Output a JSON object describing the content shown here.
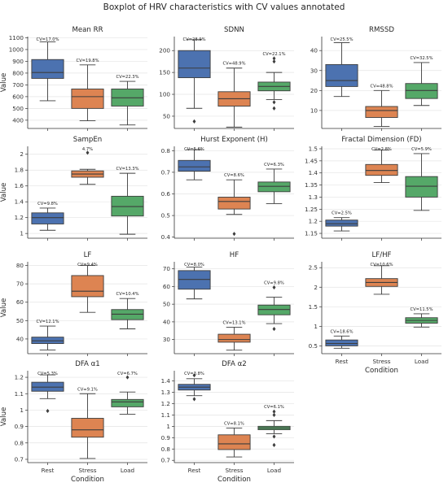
{
  "chart_data": {
    "type": "box",
    "title": "Boxplot of HRV characteristics with CV values annotated",
    "xlabel": "Condition",
    "ylabel": "Value",
    "categories": [
      "Rest",
      "Stress",
      "Load"
    ],
    "colors": {
      "Rest": "#4c72b0",
      "Stress": "#dd8452",
      "Load": "#55a868"
    },
    "panels": [
      {
        "title": "Mean RR",
        "ylim": [
          330,
          1110
        ],
        "yticks": [
          400,
          500,
          600,
          700,
          800,
          900,
          1000,
          1100
        ],
        "boxes": [
          {
            "category": "Rest",
            "whislo": 565,
            "q1": 755,
            "med": 805,
            "q3": 915,
            "whishi": 1065,
            "fliers": [],
            "cv": "CV=17.0%"
          },
          {
            "category": "Stress",
            "whislo": 395,
            "q1": 500,
            "med": 600,
            "q3": 665,
            "whishi": 870,
            "fliers": [],
            "cv": "CV=19.8%"
          },
          {
            "category": "Load",
            "whislo": 360,
            "q1": 520,
            "med": 590,
            "q3": 665,
            "whishi": 730,
            "fliers": [],
            "cv": "CV=22.3%"
          }
        ]
      },
      {
        "title": "SDNN",
        "ylim": [
          22,
          232
        ],
        "yticks": [
          50,
          100,
          150,
          200
        ],
        "boxes": [
          {
            "category": "Rest",
            "whislo": 68,
            "q1": 138,
            "med": 160,
            "q3": 200,
            "whishi": 225,
            "fliers": [
              38
            ],
            "cv": "CV=28.9%"
          },
          {
            "category": "Stress",
            "whislo": 25,
            "q1": 73,
            "med": 90,
            "q3": 106,
            "whishi": 160,
            "fliers": [],
            "cv": "CV=48.9%"
          },
          {
            "category": "Load",
            "whislo": 88,
            "q1": 108,
            "med": 118,
            "q3": 128,
            "whishi": 150,
            "fliers": [
              182,
              175,
              82,
              68
            ],
            "cv": "CV=22.1%"
          }
        ]
      },
      {
        "title": "RMSSD",
        "ylim": [
          1,
          47
        ],
        "yticks": [
          10,
          20,
          30,
          40
        ],
        "boxes": [
          {
            "category": "Rest",
            "whislo": 17,
            "q1": 22,
            "med": 25,
            "q3": 33,
            "whishi": 44,
            "fliers": [],
            "cv": "CV=25.5%"
          },
          {
            "category": "Stress",
            "whislo": 2,
            "q1": 6.5,
            "med": 10,
            "q3": 12,
            "whishi": 20,
            "fliers": [],
            "cv": "CV=48.8%"
          },
          {
            "category": "Load",
            "whislo": 12.5,
            "q1": 16,
            "med": 20,
            "q3": 23.5,
            "whishi": 34,
            "fliers": [],
            "cv": "CV=32.5%"
          }
        ]
      },
      {
        "title": "SampEn",
        "ylim": [
          0.94,
          2.1
        ],
        "yticks": [
          1.0,
          1.2,
          1.4,
          1.6,
          1.8,
          2.0
        ],
        "boxes": [
          {
            "category": "Rest",
            "whislo": 1.04,
            "q1": 1.12,
            "med": 1.2,
            "q3": 1.26,
            "whishi": 1.32,
            "fliers": [],
            "cv": "CV=9.8%"
          },
          {
            "category": "Stress",
            "whislo": 1.62,
            "q1": 1.71,
            "med": 1.75,
            "q3": 1.79,
            "whishi": 1.81,
            "fliers": [
              2.02
            ],
            "cv": "4.7%"
          },
          {
            "category": "Load",
            "whislo": 0.99,
            "q1": 1.22,
            "med": 1.34,
            "q3": 1.47,
            "whishi": 1.76,
            "fliers": [],
            "cv": "CV=13.3%"
          }
        ]
      },
      {
        "title": "Hurst Exponent (H)",
        "ylim": [
          0.395,
          0.82
        ],
        "yticks": [
          0.4,
          0.5,
          0.6,
          0.7,
          0.8
        ],
        "boxes": [
          {
            "category": "Rest",
            "whislo": 0.665,
            "q1": 0.705,
            "med": 0.725,
            "q3": 0.755,
            "whishi": 0.805,
            "fliers": [],
            "cv": "CV=5.6%"
          },
          {
            "category": "Stress",
            "whislo": 0.505,
            "q1": 0.53,
            "med": 0.565,
            "q3": 0.585,
            "whishi": 0.665,
            "fliers": [
              0.415
            ],
            "cv": "CV=8.6%"
          },
          {
            "category": "Load",
            "whislo": 0.555,
            "q1": 0.61,
            "med": 0.635,
            "q3": 0.655,
            "whishi": 0.715,
            "fliers": [],
            "cv": "CV=6.3%"
          }
        ]
      },
      {
        "title": "Fractal Dimension (FD)",
        "ylim": [
          1.13,
          1.51
        ],
        "yticks": [
          1.15,
          1.2,
          1.25,
          1.3,
          1.35,
          1.4,
          1.45,
          1.5
        ],
        "boxes": [
          {
            "category": "Rest",
            "whislo": 1.16,
            "q1": 1.18,
            "med": 1.19,
            "q3": 1.205,
            "whishi": 1.215,
            "fliers": [],
            "cv": "CV=2.5%"
          },
          {
            "category": "Stress",
            "whislo": 1.36,
            "q1": 1.39,
            "med": 1.41,
            "q3": 1.435,
            "whishi": 1.495,
            "fliers": [],
            "cv": "CV=2.8%"
          },
          {
            "category": "Load",
            "whislo": 1.245,
            "q1": 1.3,
            "med": 1.345,
            "q3": 1.385,
            "whishi": 1.48,
            "fliers": [],
            "cv": "CV=5.9%"
          }
        ]
      },
      {
        "title": "LF",
        "ylim": [
          32,
          82
        ],
        "yticks": [
          40,
          50,
          60,
          70,
          80
        ],
        "boxes": [
          {
            "category": "Rest",
            "whislo": 34,
            "q1": 37.5,
            "med": 39,
            "q3": 41,
            "whishi": 47,
            "fliers": [],
            "cv": "CV=12.1%"
          },
          {
            "category": "Stress",
            "whislo": 54.5,
            "q1": 63,
            "med": 66,
            "q3": 74.5,
            "whishi": 80,
            "fliers": [],
            "cv": "CV=9.4%"
          },
          {
            "category": "Load",
            "whislo": 45.5,
            "q1": 50.5,
            "med": 53.5,
            "q3": 56,
            "whishi": 62,
            "fliers": [],
            "cv": "CV=10.4%"
          }
        ]
      },
      {
        "title": "HF",
        "ylim": [
          22,
          74
        ],
        "yticks": [
          30,
          40,
          50,
          60,
          70
        ],
        "boxes": [
          {
            "category": "Rest",
            "whislo": 53,
            "q1": 58.5,
            "med": 64,
            "q3": 69,
            "whishi": 71,
            "fliers": [],
            "cv": "CV=8.0%"
          },
          {
            "category": "Stress",
            "whislo": 24,
            "q1": 28.5,
            "med": 30,
            "q3": 33,
            "whishi": 37,
            "fliers": [],
            "cv": "CV=13.1%"
          },
          {
            "category": "Load",
            "whislo": 39,
            "q1": 44,
            "med": 47,
            "q3": 49.5,
            "whishi": 54,
            "fliers": [
              59.5,
              36
            ],
            "cv": "CV=9.8%"
          }
        ]
      },
      {
        "title": "LF/HF",
        "ylim": [
          0.3,
          2.65
        ],
        "yticks": [
          0.5,
          1.0,
          1.5,
          2.0,
          2.5
        ],
        "boxes": [
          {
            "category": "Rest",
            "whislo": 0.44,
            "q1": 0.5,
            "med": 0.56,
            "q3": 0.65,
            "whishi": 0.75,
            "fliers": [],
            "cv": "CV=18.6%"
          },
          {
            "category": "Stress",
            "whislo": 1.82,
            "q1": 2.02,
            "med": 2.12,
            "q3": 2.22,
            "whishi": 2.55,
            "fliers": [],
            "cv": "CV=10.6%"
          },
          {
            "category": "Load",
            "whislo": 0.98,
            "q1": 1.08,
            "med": 1.15,
            "q3": 1.22,
            "whishi": 1.32,
            "fliers": [],
            "cv": "CV=11.5%"
          }
        ]
      },
      {
        "title": "DFA α1",
        "ylim": [
          0.68,
          1.24
        ],
        "yticks": [
          0.7,
          0.8,
          0.9,
          1.0,
          1.1,
          1.2
        ],
        "boxes": [
          {
            "category": "Rest",
            "whislo": 1.07,
            "q1": 1.115,
            "med": 1.14,
            "q3": 1.17,
            "whishi": 1.215,
            "fliers": [
              0.995
            ],
            "cv": "CV=5.3%"
          },
          {
            "category": "Stress",
            "whislo": 0.705,
            "q1": 0.835,
            "med": 0.88,
            "q3": 0.95,
            "whishi": 1.1,
            "fliers": [],
            "cv": "CV=9.1%"
          },
          {
            "category": "Load",
            "whislo": 0.975,
            "q1": 1.02,
            "med": 1.05,
            "q3": 1.065,
            "whishi": 1.11,
            "fliers": [
              1.2
            ],
            "cv": "CV=6.7%"
          }
        ]
      },
      {
        "title": "DFA α2",
        "ylim": [
          0.68,
          1.49
        ],
        "yticks": [
          0.7,
          0.8,
          0.9,
          1.0,
          1.1,
          1.2,
          1.3,
          1.4
        ],
        "boxes": [
          {
            "category": "Rest",
            "whislo": 1.27,
            "q1": 1.32,
            "med": 1.345,
            "q3": 1.37,
            "whishi": 1.42,
            "fliers": [
              1.45,
              1.24
            ],
            "cv": "CV=3.8%"
          },
          {
            "category": "Stress",
            "whislo": 0.73,
            "q1": 0.795,
            "med": 0.845,
            "q3": 0.925,
            "whishi": 0.985,
            "fliers": [],
            "cv": "CV=8.1%"
          },
          {
            "category": "Load",
            "whislo": 0.935,
            "q1": 0.97,
            "med": 0.985,
            "q3": 1.0,
            "whishi": 1.05,
            "fliers": [
              1.13,
              1.1,
              0.91,
              0.835
            ],
            "cv": "CV=6.1%"
          }
        ]
      }
    ]
  }
}
